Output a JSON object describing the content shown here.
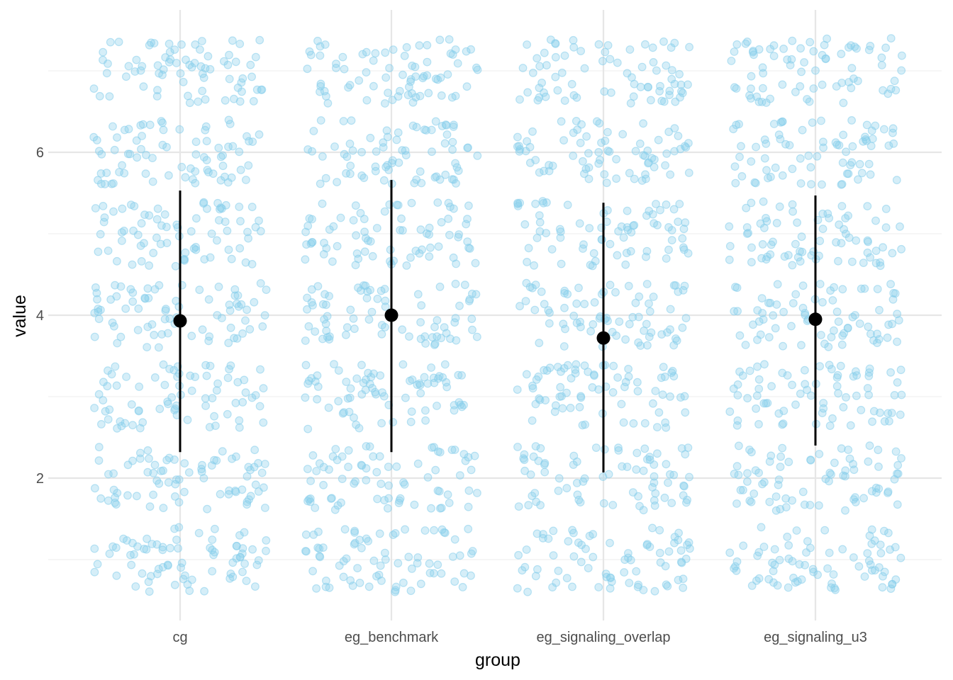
{
  "chart_data": {
    "type": "scatter",
    "subtype": "jitter-strip with mean and error bars",
    "xlabel": "group",
    "ylabel": "value",
    "categories": [
      "cg",
      "eg_benchmark",
      "eg_signaling_overlap",
      "eg_signaling_u3"
    ],
    "y_ticks": [
      2,
      4,
      6
    ],
    "ylim": [
      0.3,
      7.75
    ],
    "grid": true,
    "jitter_bands": [
      [
        0.6,
        1.4
      ],
      [
        1.6,
        2.4
      ],
      [
        2.6,
        3.4
      ],
      [
        3.6,
        4.4
      ],
      [
        4.6,
        5.4
      ],
      [
        5.6,
        6.4
      ],
      [
        6.6,
        7.4
      ]
    ],
    "points_per_band": 75,
    "summary": [
      {
        "group": "cg",
        "mean": 3.93,
        "lower": 2.32,
        "upper": 5.53
      },
      {
        "group": "eg_benchmark",
        "mean": 4.0,
        "lower": 2.32,
        "upper": 5.66
      },
      {
        "group": "eg_signaling_overlap",
        "mean": 3.72,
        "lower": 2.07,
        "upper": 5.38
      },
      {
        "group": "eg_signaling_u3",
        "mean": 3.95,
        "lower": 2.4,
        "upper": 5.47
      }
    ],
    "colors": {
      "points": "#87CEEB",
      "summary": "#000000",
      "grid_major": "#e6e6e6",
      "grid_minor": "#f0f0f0"
    }
  }
}
